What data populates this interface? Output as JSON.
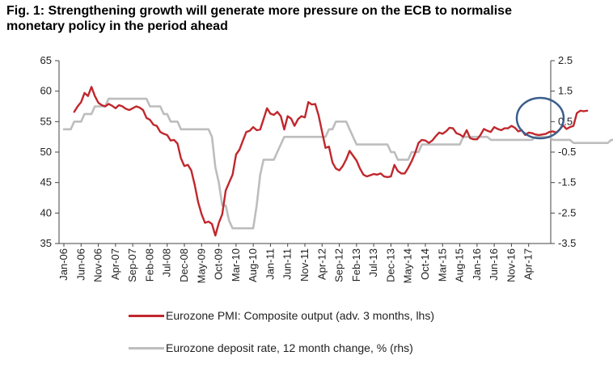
{
  "title_line1": "Fig. 1: Strengthening growth will generate more pressure on the ECB to normalise",
  "title_line2": "monetary policy in the period ahead",
  "chart_data": {
    "type": "line",
    "title": "Fig. 1: Strengthening growth will generate more pressure on the ECB to normalise monetary policy in the period ahead",
    "x_tick_labels": [
      "Jan-06",
      "Jun-06",
      "Nov-06",
      "Apr-07",
      "Sep-07",
      "Feb-08",
      "Jul-08",
      "Dec-08",
      "May-09",
      "Oct-09",
      "Mar-10",
      "Aug-10",
      "Jan-11",
      "Jun-11",
      "Nov-11",
      "Apr-12",
      "Sep-12",
      "Feb-13",
      "Jul-13",
      "Dec-13",
      "May-14",
      "Oct-14",
      "Mar-15",
      "Aug-15",
      "Jan-16",
      "Jun-16",
      "Nov-16",
      "Apr-17"
    ],
    "left_axis": {
      "ylim": [
        35,
        65
      ],
      "ticks": [
        "65",
        "60",
        "55",
        "50",
        "45",
        "40",
        "35"
      ]
    },
    "right_axis": {
      "ylim": [
        -3.5,
        2.5
      ],
      "ticks": [
        "2.5",
        "1.5",
        "0.5",
        "-0.5",
        "-1.5",
        "-2.5",
        "-3.5"
      ]
    },
    "grid": false,
    "legend_position": "bottom",
    "series": [
      {
        "name": "Eurozone PMI: Composite output (adv. 3 months, lhs)",
        "axis": "left",
        "color": "#c0272d",
        "start": "2006-04",
        "values": [
          56.6,
          57.5,
          58.2,
          59.7,
          59.2,
          60.7,
          59.2,
          58.1,
          57.7,
          57.5,
          57.9,
          57.6,
          57.2,
          57.7,
          57.5,
          57.1,
          56.9,
          57.2,
          57.5,
          57.3,
          56.9,
          55.6,
          55.3,
          54.5,
          54.3,
          53.3,
          53.0,
          52.8,
          51.9,
          52.0,
          51.4,
          49.0,
          47.7,
          47.9,
          47.0,
          44.6,
          41.8,
          39.8,
          38.4,
          38.6,
          38.2,
          36.3,
          38.4,
          39.8,
          43.7,
          45.0,
          46.3,
          49.6,
          50.4,
          51.9,
          53.3,
          53.5,
          54.1,
          53.6,
          53.7,
          55.4,
          57.2,
          56.3,
          56.1,
          56.6,
          55.9,
          53.7,
          55.9,
          55.5,
          54.3,
          55.4,
          55.9,
          55.7,
          58.2,
          57.8,
          57.9,
          56.0,
          53.3,
          50.7,
          50.9,
          48.3,
          47.3,
          47.0,
          47.7,
          48.8,
          50.2,
          49.4,
          48.6,
          47.3,
          46.3,
          46.0,
          46.2,
          46.4,
          46.3,
          46.5,
          46.0,
          45.9,
          46.0,
          47.9,
          46.9,
          46.5,
          46.5,
          47.4,
          48.5,
          49.8,
          51.5,
          52.0,
          51.9,
          51.5,
          51.9,
          52.6,
          53.2,
          53.0,
          53.4,
          54.0,
          53.9,
          53.1,
          52.9,
          52.5,
          53.6,
          52.3,
          52.1,
          52.1,
          52.8,
          53.8,
          53.5,
          53.3,
          54.1,
          53.8,
          53.6,
          53.9,
          53.9,
          54.3,
          54.0,
          53.4,
          53.6,
          52.8,
          53.2,
          53.1,
          52.9,
          52.8,
          52.9,
          53.0,
          53.3,
          53.4,
          53.2,
          53.7,
          54.4,
          53.8,
          54.1,
          54.3,
          56.4,
          56.8,
          56.7,
          56.8
        ]
      },
      {
        "name": "Eurozone deposit rate, 12 month change, % (rhs)",
        "axis": "right",
        "color": "#bdbdbd",
        "start": "2006-01",
        "values": [
          0.25,
          0.25,
          0.25,
          0.5,
          0.5,
          0.5,
          0.75,
          0.75,
          0.75,
          1.0,
          1.0,
          1.0,
          1.0,
          1.25,
          1.25,
          1.25,
          1.25,
          1.25,
          1.25,
          1.25,
          1.25,
          1.25,
          1.25,
          1.25,
          1.25,
          1.0,
          1.0,
          1.0,
          1.0,
          0.75,
          0.75,
          0.5,
          0.5,
          0.5,
          0.25,
          0.25,
          0.25,
          0.25,
          0.25,
          0.25,
          0.25,
          0.25,
          0.25,
          0.0,
          -1.0,
          -1.5,
          -2.25,
          -2.25,
          -2.75,
          -3.0,
          -3.0,
          -3.0,
          -3.0,
          -3.0,
          -3.0,
          -3.0,
          -2.25,
          -1.25,
          -0.75,
          -0.75,
          -0.75,
          -0.75,
          -0.5,
          -0.25,
          0.0,
          0.0,
          0.0,
          0.0,
          0.0,
          0.0,
          0.0,
          0.0,
          0.0,
          0.0,
          0.0,
          0.0,
          0.0,
          0.25,
          0.25,
          0.5,
          0.5,
          0.5,
          0.5,
          0.25,
          0.0,
          -0.25,
          -0.25,
          -0.25,
          -0.25,
          -0.25,
          -0.25,
          -0.25,
          -0.25,
          -0.25,
          -0.25,
          -0.5,
          -0.5,
          -0.75,
          -0.75,
          -0.75,
          -0.75,
          -0.5,
          -0.5,
          -0.5,
          -0.25,
          -0.25,
          -0.25,
          -0.25,
          -0.25,
          -0.25,
          -0.25,
          -0.25,
          -0.25,
          -0.25,
          -0.25,
          -0.25,
          0.0,
          0.0,
          0.0,
          0.0,
          0.0,
          0.0,
          0.0,
          0.0,
          -0.1,
          -0.1,
          -0.1,
          -0.1,
          -0.1,
          -0.1,
          -0.1,
          -0.1,
          -0.1,
          -0.1,
          -0.1,
          -0.1,
          -0.1,
          0.0,
          0.0,
          0.0,
          0.0,
          0.0,
          -0.1,
          -0.1,
          -0.1,
          -0.1,
          -0.1,
          -0.1,
          -0.2,
          -0.2,
          -0.2,
          -0.2,
          -0.2,
          -0.2,
          -0.2,
          -0.2,
          -0.2,
          -0.2,
          -0.2,
          -0.1,
          -0.1,
          -0.1,
          -0.1,
          -0.1,
          -0.1,
          -0.1,
          0.0,
          0.0,
          0.0,
          0.0,
          0.0
        ]
      }
    ],
    "annotation": {
      "shape": "ellipse",
      "color": "#3b5e8c",
      "marks": "latest readings (2017)"
    }
  }
}
